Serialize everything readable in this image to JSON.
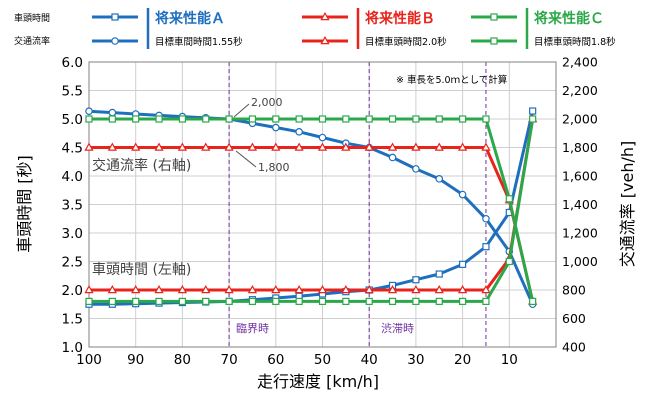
{
  "chart_data": {
    "type": "line",
    "xlabel": "走行速度 [km/h]",
    "ylabel_left": "車頭時間 [秒]",
    "ylabel_right": "交通流率 [veh/h]",
    "x_ticks": [
      "100",
      "90",
      "80",
      "70",
      "60",
      "50",
      "40",
      "30",
      "20",
      "10"
    ],
    "y_left_ticks": [
      "6.0",
      "5.5",
      "5.0",
      "4.5",
      "4.0",
      "3.5",
      "3.0",
      "2.5",
      "2.0",
      "1.5",
      "1.0"
    ],
    "y_right_ticks": [
      "2,400",
      "2,200",
      "2,000",
      "1,800",
      "1,600",
      "1,400",
      "1,200",
      "1,000",
      "800",
      "600",
      "400"
    ],
    "xlim": [
      100,
      0
    ],
    "ylim_left": [
      1.0,
      6.0
    ],
    "ylim_right": [
      400,
      2400
    ],
    "grid": true,
    "legend": {
      "marker_labels": {
        "headway": "車頭時間",
        "flow": "交通流率"
      },
      "series": [
        {
          "name": "将来性能Ａ",
          "target": "目標車間時間1.55秒",
          "color": "#1f6fbf"
        },
        {
          "name": "将来性能Ｂ",
          "target": "目標車頭時間2.0秒",
          "color": "#e8231b"
        },
        {
          "name": "将来性能Ｃ",
          "target": "目標車頭時間1.8秒",
          "color": "#2aa84a"
        }
      ]
    },
    "note": "※ 車長を5.0ｍとして計算",
    "annotations": {
      "flow_2000": "2,000",
      "flow_1800": "1,800",
      "flow_axis_label": "交通流率 (右軸)",
      "headway_axis_label": "車頭時間 (左軸)",
      "critical": "臨界時",
      "congestion": "渋滞時"
    },
    "vlines": [
      70,
      40,
      15
    ],
    "x": [
      100,
      95,
      90,
      85,
      80,
      75,
      70,
      65,
      60,
      55,
      50,
      45,
      40,
      35,
      30,
      25,
      20,
      15,
      10,
      5
    ],
    "series": [
      {
        "name": "将来性能Ａ",
        "kind": "headway",
        "marker": "square",
        "color": "#1f6fbf",
        "values": [
          1.75,
          1.75,
          1.76,
          1.77,
          1.78,
          1.79,
          1.8,
          1.83,
          1.86,
          1.89,
          1.93,
          1.97,
          2.0,
          2.08,
          2.18,
          2.28,
          2.45,
          2.76,
          3.36,
          5.14
        ]
      },
      {
        "name": "将来性能Ａ",
        "kind": "flow",
        "marker": "circle",
        "color": "#1f6fbf",
        "values": [
          2055,
          2045,
          2035,
          2025,
          2017,
          2008,
          2000,
          1970,
          1940,
          1910,
          1870,
          1830,
          1800,
          1730,
          1650,
          1580,
          1470,
          1300,
          1070,
          700
        ]
      },
      {
        "name": "将来性能Ｂ",
        "kind": "headway",
        "marker": "triangle",
        "color": "#e8231b",
        "values": [
          2.0,
          2.0,
          2.0,
          2.0,
          2.0,
          2.0,
          2.0,
          2.0,
          2.0,
          2.0,
          2.0,
          2.0,
          2.0,
          2.0,
          2.0,
          2.0,
          2.0,
          2.0,
          2.55,
          5.0
        ]
      },
      {
        "name": "将来性能Ｂ",
        "kind": "flow",
        "marker": "triangle",
        "color": "#e8231b",
        "values": [
          1800,
          1800,
          1800,
          1800,
          1800,
          1800,
          1800,
          1800,
          1800,
          1800,
          1800,
          1800,
          1800,
          1800,
          1800,
          1800,
          1800,
          1800,
          1430,
          720
        ]
      },
      {
        "name": "将来性能Ｃ",
        "kind": "headway",
        "marker": "square",
        "color": "#2aa84a",
        "values": [
          1.8,
          1.8,
          1.8,
          1.8,
          1.8,
          1.8,
          1.8,
          1.8,
          1.8,
          1.8,
          1.8,
          1.8,
          1.8,
          1.8,
          1.8,
          1.8,
          1.8,
          1.8,
          2.5,
          5.0
        ]
      },
      {
        "name": "将来性能Ｃ",
        "kind": "flow",
        "marker": "square",
        "color": "#2aa84a",
        "values": [
          2000,
          2000,
          2000,
          2000,
          2000,
          2000,
          2000,
          2000,
          2000,
          2000,
          2000,
          2000,
          2000,
          2000,
          2000,
          2000,
          2000,
          2000,
          1440,
          720
        ]
      }
    ]
  }
}
